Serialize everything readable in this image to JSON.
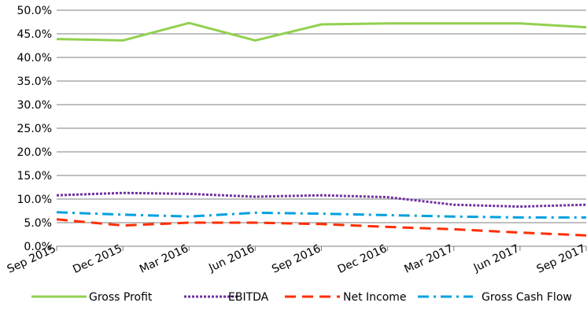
{
  "chart_data": {
    "type": "line",
    "title": "",
    "xlabel": "",
    "ylabel": "",
    "categories": [
      "Sep 2015",
      "Dec 2015",
      "Mar 2016",
      "Jun 2016",
      "Sep 2016",
      "Dec 2016",
      "Mar 2017",
      "Jun 2017",
      "Sep 2017"
    ],
    "ylim": [
      0,
      50
    ],
    "yticks": [
      "0.0%",
      "5.0%",
      "10.0%",
      "15.0%",
      "20.0%",
      "25.0%",
      "30.0%",
      "35.0%",
      "40.0%",
      "45.0%",
      "50.0%"
    ],
    "grid": true,
    "legend_position": "bottom",
    "series": [
      {
        "name": "Gross Profit",
        "color": "#92d050",
        "style": "solid",
        "values": [
          43.9,
          43.6,
          47.3,
          43.6,
          47.0,
          47.2,
          47.2,
          47.2,
          46.4
        ]
      },
      {
        "name": "EBITDA",
        "color": "#7030a0",
        "style": "dotted",
        "values": [
          10.8,
          11.3,
          11.1,
          10.5,
          10.8,
          10.4,
          8.8,
          8.4,
          8.8
        ]
      },
      {
        "name": "Net Income",
        "color": "#ff2d00",
        "style": "dashed",
        "values": [
          5.7,
          4.4,
          5.0,
          5.0,
          4.7,
          4.1,
          3.6,
          2.9,
          2.3
        ]
      },
      {
        "name": "Gross Cash Flow",
        "color": "#00a0e0",
        "style": "dashdot",
        "values": [
          7.2,
          6.7,
          6.3,
          7.1,
          6.9,
          6.6,
          6.3,
          6.1,
          6.1
        ]
      }
    ]
  }
}
